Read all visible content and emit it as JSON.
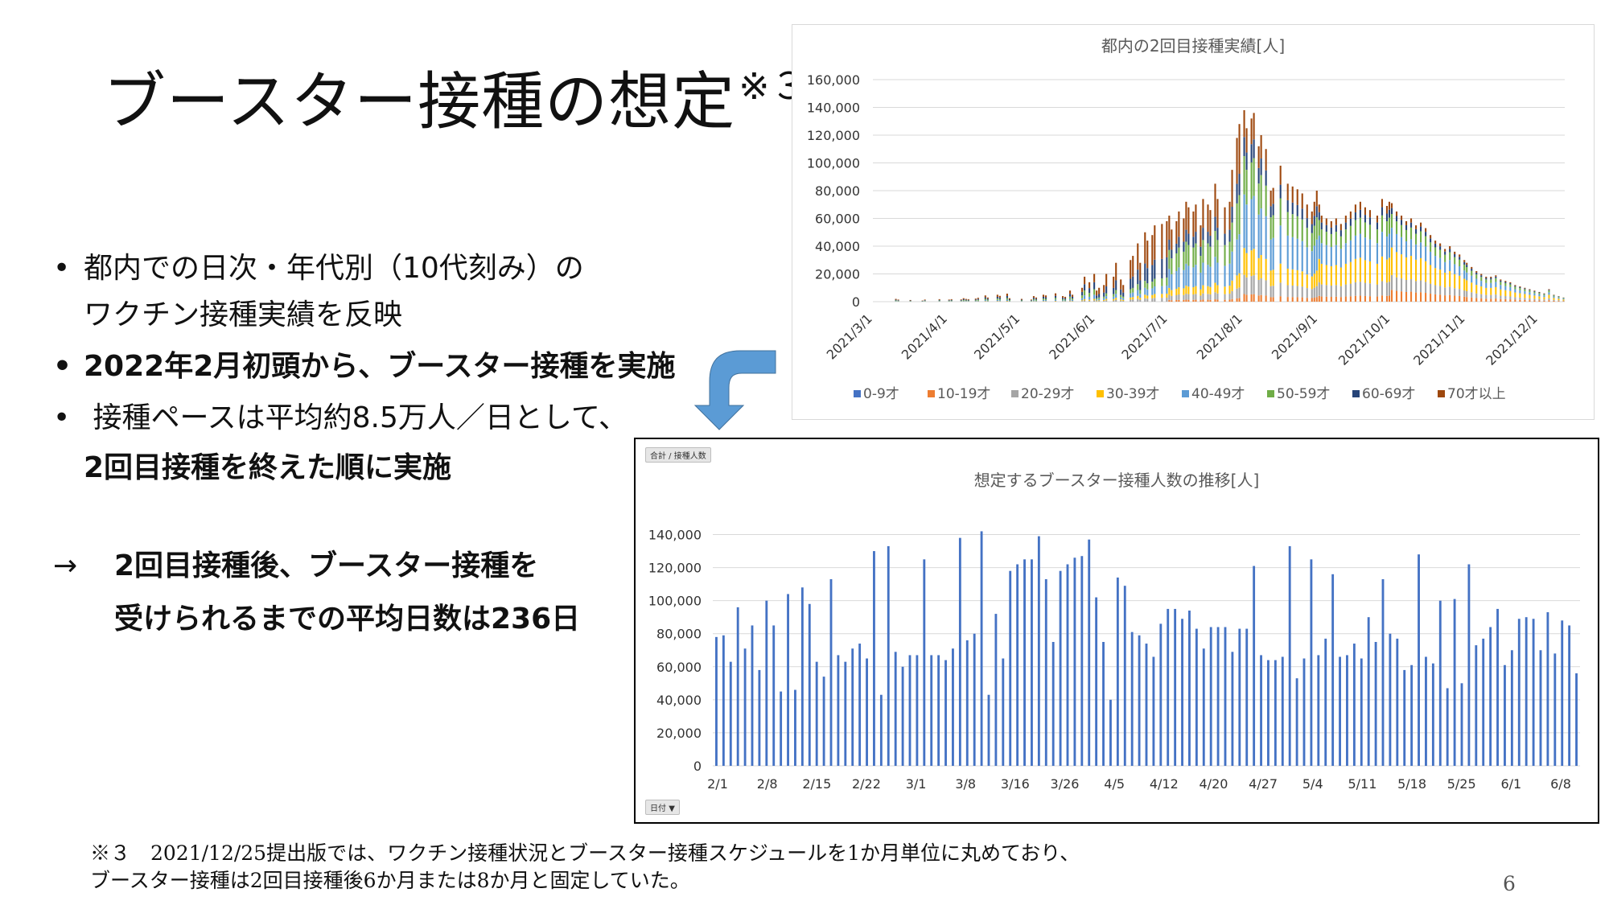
{
  "slide": {
    "title": "ブースター接種の想定",
    "title_mark": "※３",
    "page_number": "6",
    "bullets": [
      {
        "marker": "•",
        "lines": [
          "都内での日次・年代別（10代刻み）の",
          "ワクチン接種実績を反映"
        ]
      },
      {
        "marker": "•",
        "lines": [
          "2022年2月初頭から、ブースター接種を実施"
        ]
      },
      {
        "marker": "•",
        "lines": [
          " 接種ペースは平均約8.5万人／日として、",
          "2回目接種を終えた順に実施"
        ]
      }
    ],
    "conclusion": {
      "marker": "→",
      "lines": [
        "2回目接種後、ブースター接種を",
        "受けられるまでの平均日数は236日"
      ]
    },
    "footnote": [
      "※３　2021/12/25提出版では、ワクチン接種状況とブースター接種スケジュールを1か月単位に丸めており、",
      "ブースター接種は2回目接種後6か月または8か月と固定していた。"
    ],
    "colors": {
      "arrow": "#5b9bd5"
    }
  },
  "chart_data": [
    {
      "type": "bar",
      "stacked": true,
      "title": "都内の2回目接種実績[人]",
      "xlabel": "",
      "ylabel": "",
      "ylim": [
        0,
        160000
      ],
      "yticks": [
        0,
        20000,
        40000,
        60000,
        80000,
        100000,
        120000,
        140000,
        160000
      ],
      "ytick_labels": [
        "0",
        "20,000",
        "40,000",
        "60,000",
        "80,000",
        "100,000",
        "120,000",
        "140,000",
        "160,000"
      ],
      "x_tick_labels": [
        "2021/3/1",
        "2021/4/1",
        "2021/5/1",
        "2021/6/1",
        "2021/7/1",
        "2021/8/1",
        "2021/9/1",
        "2021/10/1",
        "2021/11/1",
        "2021/12/1"
      ],
      "grid": true,
      "legend": "bottom",
      "series": [
        {
          "name": "0-9才",
          "color": "#4472c4",
          "share": [
            0,
            0,
            0,
            0,
            0,
            0,
            0,
            0,
            0,
            0
          ]
        },
        {
          "name": "10-19才",
          "color": "#ed7d31",
          "share": [
            0,
            0,
            0,
            0,
            0.02,
            0.04,
            0.06,
            0.12,
            0.12,
            0.12
          ]
        },
        {
          "name": "20-29才",
          "color": "#a5a5a5",
          "share": [
            0.05,
            0.05,
            0.05,
            0.05,
            0.06,
            0.1,
            0.14,
            0.15,
            0.15,
            0.15
          ]
        },
        {
          "name": "30-39才",
          "color": "#ffc000",
          "share": [
            0.05,
            0.05,
            0.05,
            0.05,
            0.08,
            0.14,
            0.24,
            0.28,
            0.28,
            0.28
          ]
        },
        {
          "name": "40-49才",
          "color": "#5b9bd5",
          "share": [
            0.15,
            0.15,
            0.15,
            0.1,
            0.22,
            0.28,
            0.24,
            0.2,
            0.2,
            0.2
          ]
        },
        {
          "name": "50-59才",
          "color": "#70ad47",
          "share": [
            0.2,
            0.2,
            0.2,
            0.1,
            0.22,
            0.2,
            0.16,
            0.14,
            0.14,
            0.14
          ]
        },
        {
          "name": "60-69才",
          "color": "#264478",
          "share": [
            0.25,
            0.25,
            0.25,
            0.25,
            0.12,
            0.1,
            0.08,
            0.06,
            0.06,
            0.06
          ]
        },
        {
          "name": "70才以上",
          "color": "#9e480e",
          "share": [
            0.3,
            0.3,
            0.3,
            0.45,
            0.28,
            0.14,
            0.08,
            0.05,
            0.05,
            0.05
          ]
        }
      ],
      "daily_totals_by_month": [
        {
          "month": "2021/3",
          "values": [
            0,
            0,
            0,
            0,
            0,
            0,
            0,
            0,
            0,
            2000,
            1500,
            0,
            0,
            0,
            0,
            1200,
            0,
            0,
            0,
            0,
            800,
            1500,
            0,
            0,
            0,
            0,
            0,
            1800,
            0,
            0,
            0
          ]
        },
        {
          "month": "2021/4",
          "values": [
            1500,
            1800,
            0,
            0,
            0,
            1600,
            2500,
            2000,
            1800,
            0,
            0,
            2200,
            2800,
            0,
            0,
            4500,
            3000,
            0,
            0,
            0,
            5000,
            4200,
            0,
            0,
            5800,
            2500,
            0,
            0,
            0,
            0
          ]
        },
        {
          "month": "2021/5",
          "values": [
            2000,
            0,
            0,
            0,
            1500,
            4000,
            3000,
            0,
            0,
            5000,
            4500,
            0,
            0,
            0,
            6000,
            0,
            0,
            4000,
            3500,
            0,
            8000,
            5000,
            0,
            0,
            0,
            10000,
            18000,
            0,
            14000,
            0,
            20000
          ]
        },
        {
          "month": "2021/6",
          "values": [
            8000,
            10000,
            0,
            12000,
            20000,
            0,
            0,
            18000,
            28000,
            0,
            16000,
            12000,
            0,
            0,
            30000,
            33000,
            0,
            42000,
            28000,
            0,
            50000,
            44000,
            0,
            48000,
            55000,
            0,
            0,
            56000,
            0,
            58000
          ]
        },
        {
          "month": "2021/7",
          "values": [
            62000,
            52000,
            0,
            58000,
            65000,
            0,
            60000,
            72000,
            68000,
            0,
            65000,
            70000,
            0,
            55000,
            74000,
            0,
            70000,
            66000,
            0,
            85000,
            74000,
            0,
            0,
            68000,
            0,
            72000,
            95000,
            0,
            118000,
            128000,
            0
          ]
        },
        {
          "month": "2021/8",
          "values": [
            138000,
            125000,
            0,
            132000,
            136000,
            0,
            112000,
            120000,
            0,
            110000,
            0,
            80000,
            82000,
            0,
            0,
            98000,
            0,
            0,
            85000,
            0,
            83000,
            0,
            81000,
            0,
            78000,
            0,
            70000,
            0,
            65000,
            72000,
            80000
          ]
        },
        {
          "month": "2021/9",
          "values": [
            70000,
            62000,
            0,
            60000,
            0,
            58000,
            0,
            60000,
            0,
            56000,
            0,
            62000,
            0,
            65000,
            0,
            70000,
            0,
            72000,
            0,
            68000,
            0,
            66000,
            0,
            0,
            62000,
            0,
            74000,
            0,
            69000,
            72000
          ]
        },
        {
          "month": "2021/10",
          "values": [
            71000,
            0,
            65000,
            0,
            62000,
            0,
            58000,
            0,
            60000,
            0,
            55000,
            0,
            57000,
            0,
            53000,
            0,
            48000,
            0,
            44000,
            0,
            42000,
            0,
            38000,
            0,
            40000,
            0,
            36000,
            0,
            34000,
            0,
            30000
          ]
        },
        {
          "month": "2021/11",
          "values": [
            28000,
            0,
            25000,
            0,
            22000,
            0,
            20000,
            0,
            18000,
            0,
            18000,
            0,
            19000,
            0,
            16000,
            0,
            15000,
            0,
            14000,
            0,
            12000,
            0,
            11000,
            0,
            10000,
            0,
            9000,
            0,
            8000,
            0
          ]
        },
        {
          "month": "2021/12",
          "values": [
            7000,
            0,
            6000,
            0,
            9000,
            0,
            5000,
            0,
            4000,
            0,
            3000
          ]
        }
      ]
    },
    {
      "type": "bar",
      "title": "想定するブースター接種人数の推移[人]",
      "xlabel": "",
      "ylabel": "",
      "ylim": [
        0,
        150000
      ],
      "yticks": [
        0,
        20000,
        40000,
        60000,
        80000,
        100000,
        120000,
        140000
      ],
      "ytick_labels": [
        "0",
        "20,000",
        "40,000",
        "60,000",
        "80,000",
        "100,000",
        "120,000",
        "140,000"
      ],
      "x_tick_labels": [
        "2/1",
        "2/8",
        "2/15",
        "2/22",
        "3/1",
        "3/8",
        "3/16",
        "3/26",
        "4/5",
        "4/12",
        "4/20",
        "4/27",
        "5/4",
        "5/11",
        "5/18",
        "5/25",
        "6/1",
        "6/8"
      ],
      "grid": true,
      "series": [
        {
          "name": "",
          "color": "#4472c4"
        }
      ],
      "values": [
        78000,
        79000,
        63000,
        96000,
        71000,
        85000,
        58000,
        100000,
        85000,
        45000,
        104000,
        46000,
        108000,
        98000,
        63000,
        54000,
        113000,
        67000,
        63000,
        71000,
        74000,
        65000,
        130000,
        43000,
        133000,
        69000,
        60000,
        67000,
        67000,
        125000,
        67000,
        67000,
        64000,
        71000,
        138000,
        76000,
        80000,
        142000,
        43000,
        92000,
        65000,
        118000,
        122000,
        125000,
        125000,
        139000,
        113000,
        75000,
        118000,
        122000,
        126000,
        127000,
        137000,
        102000,
        75000,
        40000,
        114000,
        109000,
        81000,
        79000,
        74000,
        66000,
        86000,
        95000,
        95000,
        89000,
        94000,
        83000,
        71000,
        84000,
        84000,
        84000,
        69000,
        83000,
        83000,
        121000,
        67000,
        64000,
        64000,
        66000,
        133000,
        53000,
        65000,
        125000,
        67000,
        77000,
        116000,
        66000,
        67000,
        74000,
        65000,
        90000,
        75000,
        113000,
        80000,
        77000,
        58000,
        61000,
        128000,
        66000,
        62000,
        100000,
        47000,
        101000,
        50000,
        122000,
        73000,
        77000,
        84000,
        95000,
        61000,
        70000,
        89000,
        90000,
        89000,
        70000,
        93000,
        68000,
        88000,
        85000,
        56000
      ],
      "axis_controls": {
        "value_field": "合計 / 接種人数",
        "category_field": "日付"
      }
    }
  ]
}
